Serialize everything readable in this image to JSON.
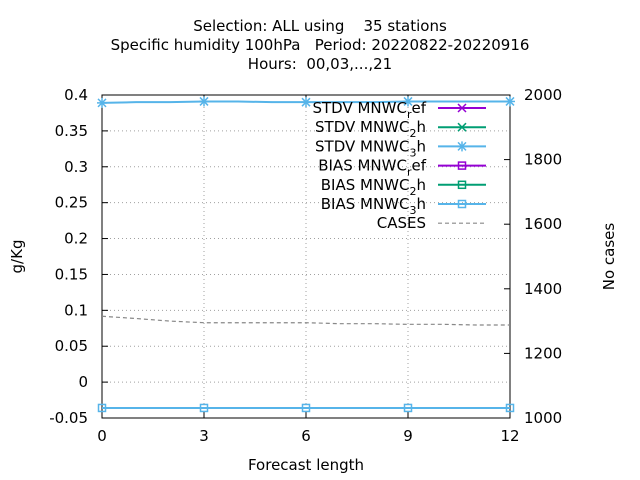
{
  "title": {
    "line1": "Selection: ALL using    35 stations",
    "line2": "Specific humidity 100hPa   Period: 20220822-20220916",
    "line3": "Hours:  00,03,...,21"
  },
  "chart_data": {
    "type": "line",
    "xlabel": "Forecast length",
    "ylabel": "g/Kg",
    "y2label": "No cases",
    "xlim": [
      0,
      12
    ],
    "ylim": [
      -0.05,
      0.4
    ],
    "y2lim": [
      1000,
      2000
    ],
    "xticks": [
      "0",
      "3",
      "6",
      "9",
      "12"
    ],
    "yticks": [
      "-0.05",
      "0",
      "0.05",
      "0.1",
      "0.15",
      "0.2",
      "0.25",
      "0.3",
      "0.35",
      "0.4"
    ],
    "y2ticks": [
      "1000",
      "1200",
      "1400",
      "1600",
      "1800",
      "2000"
    ],
    "grid": true,
    "legend_position": "top-right",
    "series": [
      {
        "name": "STDV MNWC_ref",
        "name_main": "STDV MNWC",
        "name_sub": "r",
        "name_tail": "ef",
        "axis": "y",
        "color": "#9400d3",
        "marker": "x",
        "dash": false,
        "x": [],
        "y": []
      },
      {
        "name": "STDV MNWC_2h",
        "name_main": "STDV MNWC",
        "name_sub": "2",
        "name_tail": "h",
        "axis": "y",
        "color": "#009e73",
        "marker": "x",
        "dash": false,
        "x": [],
        "y": []
      },
      {
        "name": "STDV MNWC_3h",
        "name_main": "STDV MNWC",
        "name_sub": "3",
        "name_tail": "h",
        "axis": "y",
        "color": "#56b4e9",
        "marker": "star",
        "dash": false,
        "x": [
          0,
          1,
          2,
          3,
          4,
          5,
          6,
          7,
          8,
          9,
          10,
          11,
          12
        ],
        "y": [
          0.389,
          0.39,
          0.39,
          0.391,
          0.391,
          0.39,
          0.39,
          0.39,
          0.39,
          0.391,
          0.391,
          0.391,
          0.391
        ]
      },
      {
        "name": "BIAS MNWC_ref",
        "name_main": "BIAS MNWC",
        "name_sub": "r",
        "name_tail": "ef",
        "axis": "y",
        "color": "#9400d3",
        "marker": "square",
        "dash": false,
        "x": [],
        "y": []
      },
      {
        "name": "BIAS MNWC_2h",
        "name_main": "BIAS MNWC",
        "name_sub": "2",
        "name_tail": "h",
        "axis": "y",
        "color": "#009e73",
        "marker": "square",
        "dash": false,
        "x": [],
        "y": []
      },
      {
        "name": "BIAS MNWC_3h",
        "name_main": "BIAS MNWC",
        "name_sub": "3",
        "name_tail": "h",
        "axis": "y",
        "color": "#56b4e9",
        "marker": "square",
        "dash": false,
        "x": [
          0,
          3,
          6,
          9,
          12
        ],
        "y": [
          -0.036,
          -0.036,
          -0.036,
          -0.036,
          -0.036
        ]
      },
      {
        "name": "CASES",
        "name_main": "CASES",
        "name_sub": "",
        "name_tail": "",
        "axis": "y2",
        "color": "#888888",
        "marker": "none",
        "dash": true,
        "x": [
          0,
          1,
          2,
          3,
          4,
          5,
          6,
          7,
          8,
          9,
          10,
          11,
          12
        ],
        "y": [
          1315,
          1308,
          1300,
          1295,
          1295,
          1295,
          1295,
          1292,
          1292,
          1290,
          1290,
          1288,
          1288
        ]
      }
    ]
  }
}
